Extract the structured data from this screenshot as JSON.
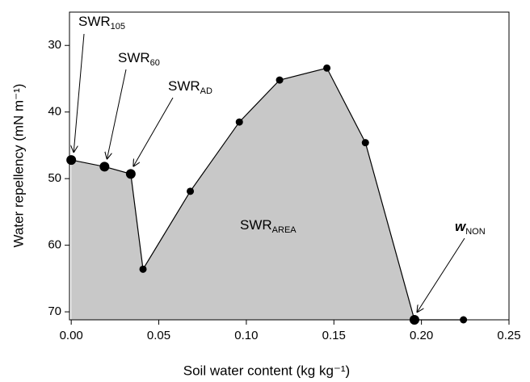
{
  "chart_data": {
    "type": "area",
    "x_label": "Soil water content (kg kg⁻¹)",
    "y_label": "Water repellency (mN m⁻¹)",
    "x": [
      0,
      0.019,
      0.034,
      0.041,
      0.068,
      0.096,
      0.119,
      0.146,
      0.168,
      0.196,
      0.224
    ],
    "values": [
      47.2,
      48.2,
      49.3,
      63.6,
      51.9,
      41.5,
      35.2,
      33.4,
      44.6,
      71.2,
      71.2
    ],
    "color": "#000000",
    "fill": "#c8c8c8",
    "xlim": [
      -0.001,
      0.25
    ],
    "ylim": [
      25,
      71.2
    ],
    "y_inverted": true,
    "xticks": [
      {
        "value": 0,
        "label": "0.00"
      },
      0.05,
      {
        "value": 0.1,
        "label": "0.10"
      },
      0.15,
      {
        "value": 0.2,
        "label": "0.20"
      },
      0.25
    ],
    "yticks": [
      30,
      40,
      50,
      60,
      70
    ],
    "annotations": [
      {
        "text": "SWR",
        "sub": "105"
      },
      {
        "text": "SWR",
        "sub": "60"
      },
      {
        "text": "SWR",
        "sub": "AD"
      },
      {
        "text": "SWR",
        "sub": "AREA"
      },
      {
        "text": "w",
        "sub": "NON"
      }
    ]
  }
}
